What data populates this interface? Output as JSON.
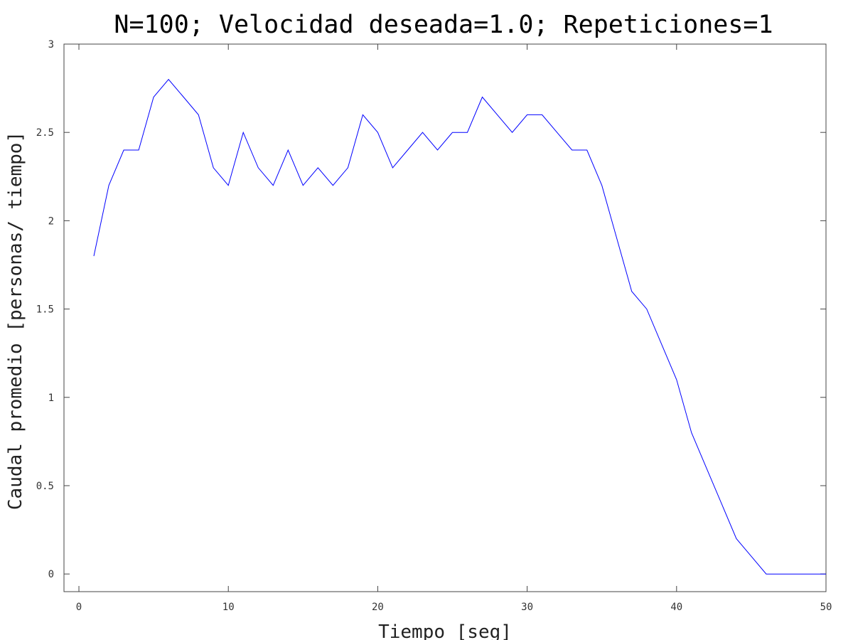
{
  "chart_data": {
    "type": "line",
    "title": "N=100; Velocidad deseada=1.0; Repeticiones=1",
    "xlabel": "Tiempo [seg]",
    "ylabel": "Caudal promedio [personas/ tiempo]",
    "xlim": [
      -1,
      50
    ],
    "ylim": [
      -0.1,
      3
    ],
    "xticks": [
      0,
      10,
      20,
      30,
      40,
      50
    ],
    "yticks": [
      0,
      0.5,
      1,
      1.5,
      2,
      2.5,
      3
    ],
    "xtick_labels": [
      "0",
      "10",
      "20",
      "30",
      "40",
      "50"
    ],
    "ytick_labels": [
      "0",
      "0.5",
      "1",
      "1.5",
      "2",
      "2.5",
      "3"
    ],
    "grid": false,
    "series": [
      {
        "color": "#0000ff",
        "x": [
          1,
          2,
          3,
          4,
          5,
          6,
          7,
          8,
          9,
          10,
          11,
          12,
          13,
          14,
          15,
          16,
          17,
          18,
          19,
          20,
          21,
          22,
          23,
          24,
          25,
          26,
          27,
          28,
          29,
          30,
          31,
          32,
          33,
          34,
          35,
          36,
          37,
          38,
          39,
          40,
          41,
          42,
          43,
          44,
          45,
          46,
          47,
          48,
          49,
          50
        ],
        "y": [
          1.8,
          2.2,
          2.4,
          2.4,
          2.7,
          2.8,
          2.7,
          2.6,
          2.3,
          2.2,
          2.5,
          2.3,
          2.2,
          2.4,
          2.2,
          2.3,
          2.2,
          2.3,
          2.6,
          2.5,
          2.3,
          2.4,
          2.5,
          2.4,
          2.5,
          2.5,
          2.7,
          2.6,
          2.5,
          2.6,
          2.6,
          2.5,
          2.4,
          2.4,
          2.2,
          1.9,
          1.6,
          1.5,
          1.3,
          1.1,
          0.8,
          0.6,
          0.4,
          0.2,
          0.1,
          0,
          0,
          0,
          0,
          0
        ]
      }
    ]
  }
}
